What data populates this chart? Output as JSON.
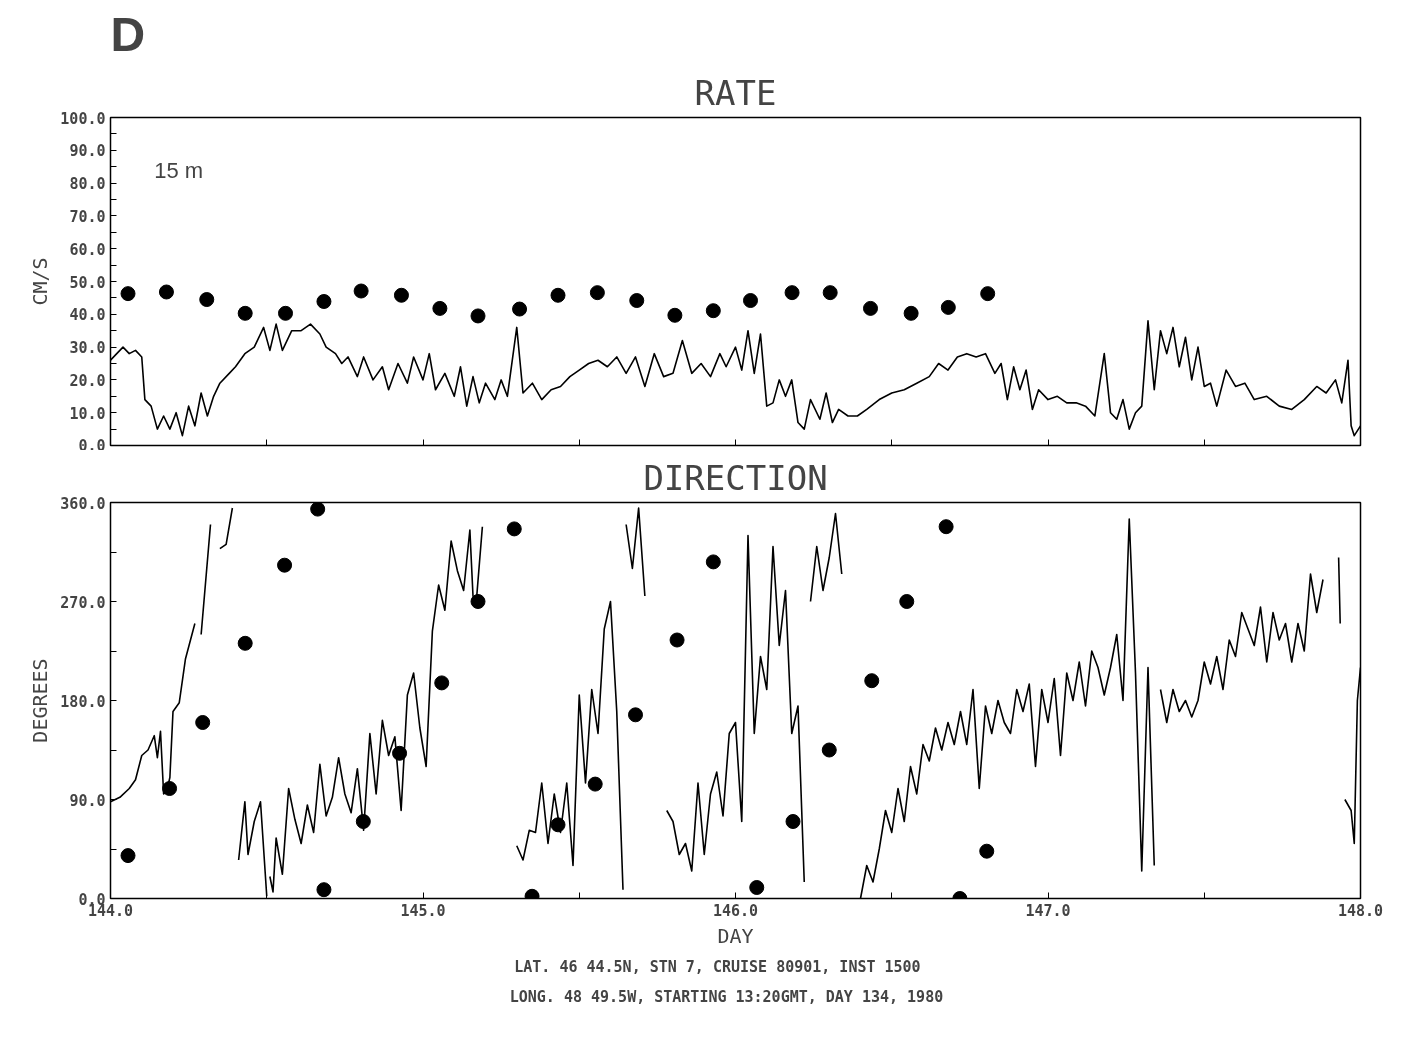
{
  "chart_data": [
    {
      "type": "line",
      "title": "RATE",
      "ylabel": "CM/S",
      "annotations": [
        "D",
        "15 m"
      ],
      "xlim": [
        144,
        148
      ],
      "ylim": [
        0,
        100
      ],
      "xticks": [
        {
          "value": 144,
          "label": null
        },
        {
          "value": 144.5,
          "label": null
        },
        {
          "value": 145,
          "label": null
        },
        {
          "value": 145.5,
          "label": null
        },
        {
          "value": 146,
          "label": null
        },
        {
          "value": 146.5,
          "label": null
        },
        {
          "value": 147,
          "label": null
        },
        {
          "value": 147.5,
          "label": null
        },
        {
          "value": 148,
          "label": null
        }
      ],
      "yticks": [
        {
          "value": 0,
          "label": "0.0"
        },
        {
          "value": 5,
          "label": null
        },
        {
          "value": 10,
          "label": "10.0"
        },
        {
          "value": 15,
          "label": null
        },
        {
          "value": 20,
          "label": "20.0"
        },
        {
          "value": 25,
          "label": null
        },
        {
          "value": 30,
          "label": "30.0"
        },
        {
          "value": 35,
          "label": null
        },
        {
          "value": 40,
          "label": "40.0"
        },
        {
          "value": 45,
          "label": null
        },
        {
          "value": 50,
          "label": "50.0"
        },
        {
          "value": 55,
          "label": null
        },
        {
          "value": 60,
          "label": "60.0"
        },
        {
          "value": 65,
          "label": null
        },
        {
          "value": 70,
          "label": "70.0"
        },
        {
          "value": 75,
          "label": null
        },
        {
          "value": 80,
          "label": "80.0"
        },
        {
          "value": 85,
          "label": null
        },
        {
          "value": 90,
          "label": "90.0"
        },
        {
          "value": 95,
          "label": null
        },
        {
          "value": 100,
          "label": "100.0"
        }
      ],
      "tick_labels": "y",
      "grid": false,
      "line_style": "solid",
      "series": [
        {
          "color": "#000000",
          "x": [
            144.0,
            144.02,
            144.04,
            144.06,
            144.08,
            144.1,
            144.11,
            144.13,
            144.15,
            144.17,
            144.19,
            144.21,
            144.23,
            144.25,
            144.27,
            144.29,
            144.31,
            144.33,
            144.35,
            144.38,
            144.4,
            144.43,
            144.46,
            144.49,
            144.51,
            144.53,
            144.55,
            144.58,
            144.61,
            144.64,
            144.67,
            144.69,
            144.72,
            144.74,
            144.76,
            144.79,
            144.81,
            144.84,
            144.87,
            144.89,
            144.92,
            144.95,
            144.97,
            145.0,
            145.02,
            145.04,
            145.07,
            145.1,
            145.12,
            145.14,
            145.16,
            145.18,
            145.2,
            145.23,
            145.25,
            145.27,
            145.3,
            145.32,
            145.35,
            145.38,
            145.41,
            145.44,
            145.47,
            145.5,
            145.53,
            145.56,
            145.59,
            145.62,
            145.65,
            145.68,
            145.71,
            145.74,
            145.77,
            145.8,
            145.83,
            145.86,
            145.89,
            145.92,
            145.95,
            145.97,
            146.0,
            146.02,
            146.04,
            146.06,
            146.08,
            146.1,
            146.12,
            146.14,
            146.16,
            146.18,
            146.2,
            146.22,
            146.24,
            146.27,
            146.29,
            146.31,
            146.33,
            146.36,
            146.39,
            146.42,
            146.46,
            146.5,
            146.54,
            146.58,
            146.62,
            146.65,
            146.68,
            146.71,
            146.74,
            146.77,
            146.8,
            146.83,
            146.85,
            146.87,
            146.89,
            146.91,
            146.93,
            146.95,
            146.97,
            147.0,
            147.03,
            147.06,
            147.09,
            147.12,
            147.15,
            147.18,
            147.2,
            147.22,
            147.24,
            147.26,
            147.28,
            147.3,
            147.32,
            147.34,
            147.36,
            147.38,
            147.4,
            147.42,
            147.44,
            147.46,
            147.48,
            147.5,
            147.52,
            147.54,
            147.57,
            147.6,
            147.63,
            147.66,
            147.7,
            147.74,
            147.78,
            147.82,
            147.86,
            147.89,
            147.92,
            147.94,
            147.96,
            147.97,
            147.98,
            148.0
          ],
          "values": [
            26,
            28,
            30,
            28,
            29,
            27,
            14,
            12,
            5,
            9,
            5,
            10,
            3,
            12,
            6,
            16,
            9,
            15,
            19,
            22,
            24,
            28,
            30,
            36,
            29,
            37,
            29,
            35,
            35,
            37,
            34,
            30,
            28,
            25,
            27,
            21,
            27,
            20,
            24,
            17,
            25,
            19,
            27,
            20,
            28,
            17,
            22,
            15,
            24,
            12,
            21,
            13,
            19,
            14,
            20,
            15,
            36,
            16,
            19,
            14,
            17,
            18,
            21,
            23,
            25,
            26,
            24,
            27,
            22,
            27,
            18,
            28,
            21,
            22,
            32,
            22,
            25,
            21,
            28,
            24,
            30,
            23,
            35,
            22,
            34,
            12,
            13,
            20,
            15,
            20,
            7,
            5,
            14,
            8,
            16,
            7,
            11,
            9,
            9,
            11,
            14,
            16,
            17,
            19,
            21,
            25,
            23,
            27,
            28,
            27,
            28,
            22,
            25,
            14,
            24,
            17,
            23,
            11,
            17,
            14,
            15,
            13,
            13,
            12,
            9,
            28,
            10,
            8,
            14,
            5,
            10,
            12,
            38,
            17,
            35,
            28,
            36,
            24,
            33,
            20,
            30,
            18,
            19,
            12,
            23,
            18,
            19,
            14,
            15,
            12,
            11,
            14,
            18,
            16,
            20,
            13,
            26,
            6,
            3,
            6
          ]
        },
        {
          "type": "scatter",
          "color": "#000000",
          "marker": "circle",
          "x": [
            144.056,
            144.179,
            144.308,
            144.431,
            144.56,
            144.683,
            144.802,
            144.931,
            145.054,
            145.176,
            145.309,
            145.432,
            145.558,
            145.684,
            145.806,
            145.929,
            146.048,
            146.181,
            146.303,
            146.432,
            146.562,
            146.681,
            146.807
          ],
          "values": [
            46.3,
            46.8,
            44.5,
            40.3,
            40.3,
            43.9,
            47.1,
            45.8,
            41.8,
            39.5,
            41.6,
            45.8,
            46.6,
            44.2,
            39.7,
            41.1,
            44.2,
            46.6,
            46.6,
            41.8,
            40.3,
            42.1,
            46.3
          ]
        }
      ]
    },
    {
      "type": "line",
      "title": "DIRECTION",
      "ylabel": "DEGREES",
      "xlabel": "DAY",
      "annotations": [
        "LAT.   46 44.5N, STN   7, CRUISE 80901, INST 1500",
        "LONG.   48 49.5W, STARTING 13:20GMT, DAY 134, 1980"
      ],
      "xlim": [
        144,
        148
      ],
      "ylim": [
        0,
        360
      ],
      "xticks": [
        {
          "value": 144,
          "label": "144.0"
        },
        {
          "value": 144.5,
          "label": null
        },
        {
          "value": 145,
          "label": "145.0"
        },
        {
          "value": 145.5,
          "label": null
        },
        {
          "value": 146,
          "label": "146.0"
        },
        {
          "value": 146.5,
          "label": null
        },
        {
          "value": 147,
          "label": "147.0"
        },
        {
          "value": 147.5,
          "label": null
        },
        {
          "value": 148,
          "label": "148.0"
        }
      ],
      "yticks": [
        {
          "value": 0,
          "label": "0.0"
        },
        {
          "value": 45,
          "label": null
        },
        {
          "value": 90,
          "label": "90.0"
        },
        {
          "value": 135,
          "label": null
        },
        {
          "value": 180,
          "label": "180.0"
        },
        {
          "value": 225,
          "label": null
        },
        {
          "value": 270,
          "label": "270.0"
        },
        {
          "value": 315,
          "label": null
        },
        {
          "value": 360,
          "label": "360.0"
        }
      ],
      "grid": false,
      "line_style": "solid",
      "series": [
        {
          "color": "#000000",
          "x": [
            144.0,
            144.03,
            144.06,
            144.08,
            144.1,
            144.12,
            144.14,
            144.15,
            144.16,
            144.17,
            144.18,
            144.19,
            144.2,
            144.22,
            144.24,
            144.27,
            144.28,
            144.29,
            144.32,
            144.335,
            144.35,
            144.37,
            144.39,
            144.4,
            144.41,
            144.43,
            144.44,
            144.46,
            144.48,
            144.5,
            144.505,
            144.51,
            144.52,
            144.53,
            144.55,
            144.57,
            144.59,
            144.61,
            144.63,
            144.65,
            144.67,
            144.69,
            144.71,
            144.73,
            144.75,
            144.77,
            144.79,
            144.81,
            144.83,
            144.85,
            144.87,
            144.89,
            144.91,
            144.93,
            144.95,
            144.97,
            144.99,
            145.01,
            145.03,
            145.05,
            145.07,
            145.09,
            145.11,
            145.13,
            145.15,
            145.16,
            145.17,
            145.19,
            145.25,
            145.3,
            145.32,
            145.34,
            145.36,
            145.38,
            145.4,
            145.42,
            145.44,
            145.46,
            145.48,
            145.5,
            145.52,
            145.54,
            145.56,
            145.58,
            145.6,
            145.62,
            145.64,
            145.645,
            145.65,
            145.67,
            145.69,
            145.71,
            145.75,
            145.78,
            145.8,
            145.82,
            145.84,
            145.86,
            145.88,
            145.9,
            145.92,
            145.94,
            145.96,
            145.98,
            146.0,
            146.02,
            146.04,
            146.06,
            146.08,
            146.1,
            146.12,
            146.14,
            146.16,
            146.18,
            146.2,
            146.22,
            146.23,
            146.24,
            146.26,
            146.28,
            146.3,
            146.32,
            146.34,
            146.37,
            146.4,
            146.42,
            146.44,
            146.46,
            146.48,
            146.5,
            146.52,
            146.54,
            146.56,
            146.58,
            146.6,
            146.62,
            146.64,
            146.66,
            146.68,
            146.7,
            146.72,
            146.74,
            146.76,
            146.78,
            146.8,
            146.82,
            146.84,
            146.86,
            146.88,
            146.9,
            146.92,
            146.94,
            146.96,
            146.98,
            147.0,
            147.02,
            147.04,
            147.06,
            147.08,
            147.1,
            147.12,
            147.14,
            147.16,
            147.18,
            147.2,
            147.22,
            147.24,
            147.26,
            147.28,
            147.3,
            147.32,
            147.34,
            147.35,
            147.36,
            147.38,
            147.4,
            147.42,
            147.44,
            147.46,
            147.48,
            147.5,
            147.52,
            147.54,
            147.56,
            147.58,
            147.6,
            147.62,
            147.64,
            147.66,
            147.68,
            147.7,
            147.72,
            147.74,
            147.76,
            147.78,
            147.8,
            147.82,
            147.84,
            147.86,
            147.88,
            147.91,
            147.93,
            147.935,
            147.94,
            147.95,
            147.97,
            147.98,
            147.99,
            148.0
          ],
          "values": [
            88,
            92,
            100,
            108,
            130,
            135,
            148,
            128,
            152,
            95,
            98,
            110,
            170,
            178,
            218,
            250,
            null,
            240,
            340,
            null,
            318,
            322,
            355,
            null,
            35,
            88,
            40,
            70,
            88,
            2,
            null,
            20,
            6,
            55,
            22,
            100,
            72,
            50,
            85,
            60,
            122,
            75,
            92,
            128,
            95,
            78,
            118,
            62,
            150,
            95,
            162,
            130,
            147,
            80,
            185,
            205,
            155,
            120,
            243,
            285,
            262,
            325,
            298,
            280,
            335,
            275,
            268,
            338,
            null,
            48,
            35,
            62,
            60,
            105,
            50,
            95,
            60,
            105,
            30,
            185,
            105,
            190,
            150,
            245,
            270,
            170,
            8,
            null,
            340,
            300,
            355,
            275,
            null,
            80,
            70,
            40,
            50,
            25,
            105,
            40,
            95,
            115,
            75,
            150,
            160,
            70,
            330,
            150,
            220,
            190,
            320,
            230,
            280,
            150,
            175,
            15,
            null,
            270,
            320,
            280,
            310,
            350,
            295,
            null,
            0,
            30,
            15,
            45,
            80,
            60,
            100,
            70,
            120,
            95,
            140,
            125,
            155,
            135,
            160,
            140,
            170,
            140,
            190,
            100,
            175,
            150,
            180,
            160,
            150,
            190,
            170,
            195,
            120,
            190,
            160,
            200,
            130,
            205,
            180,
            215,
            175,
            225,
            210,
            185,
            210,
            240,
            180,
            345,
            205,
            25,
            210,
            30,
            null,
            190,
            160,
            190,
            170,
            180,
            165,
            180,
            215,
            195,
            220,
            190,
            235,
            220,
            260,
            245,
            230,
            265,
            215,
            260,
            235,
            250,
            215,
            250,
            225,
            295,
            260,
            290,
            null,
            310,
            250,
            null,
            90,
            80,
            50,
            180,
            210
          ]
        },
        {
          "type": "scatter",
          "color": "#000000",
          "marker": "circle",
          "x": [
            144.056,
            144.189,
            144.295,
            144.431,
            144.557,
            144.663,
            144.683,
            144.809,
            144.925,
            145.06,
            145.176,
            145.292,
            145.349,
            145.432,
            145.551,
            145.68,
            145.813,
            145.929,
            146.068,
            146.184,
            146.3,
            146.436,
            146.548,
            146.674,
            146.718,
            146.804
          ],
          "values": [
            39,
            100,
            160,
            232,
            303,
            354,
            8,
            70,
            132,
            196,
            270,
            336,
            2,
            67,
            104,
            167,
            235,
            306,
            10,
            70,
            135,
            198,
            270,
            338,
            0,
            43
          ]
        }
      ]
    }
  ]
}
